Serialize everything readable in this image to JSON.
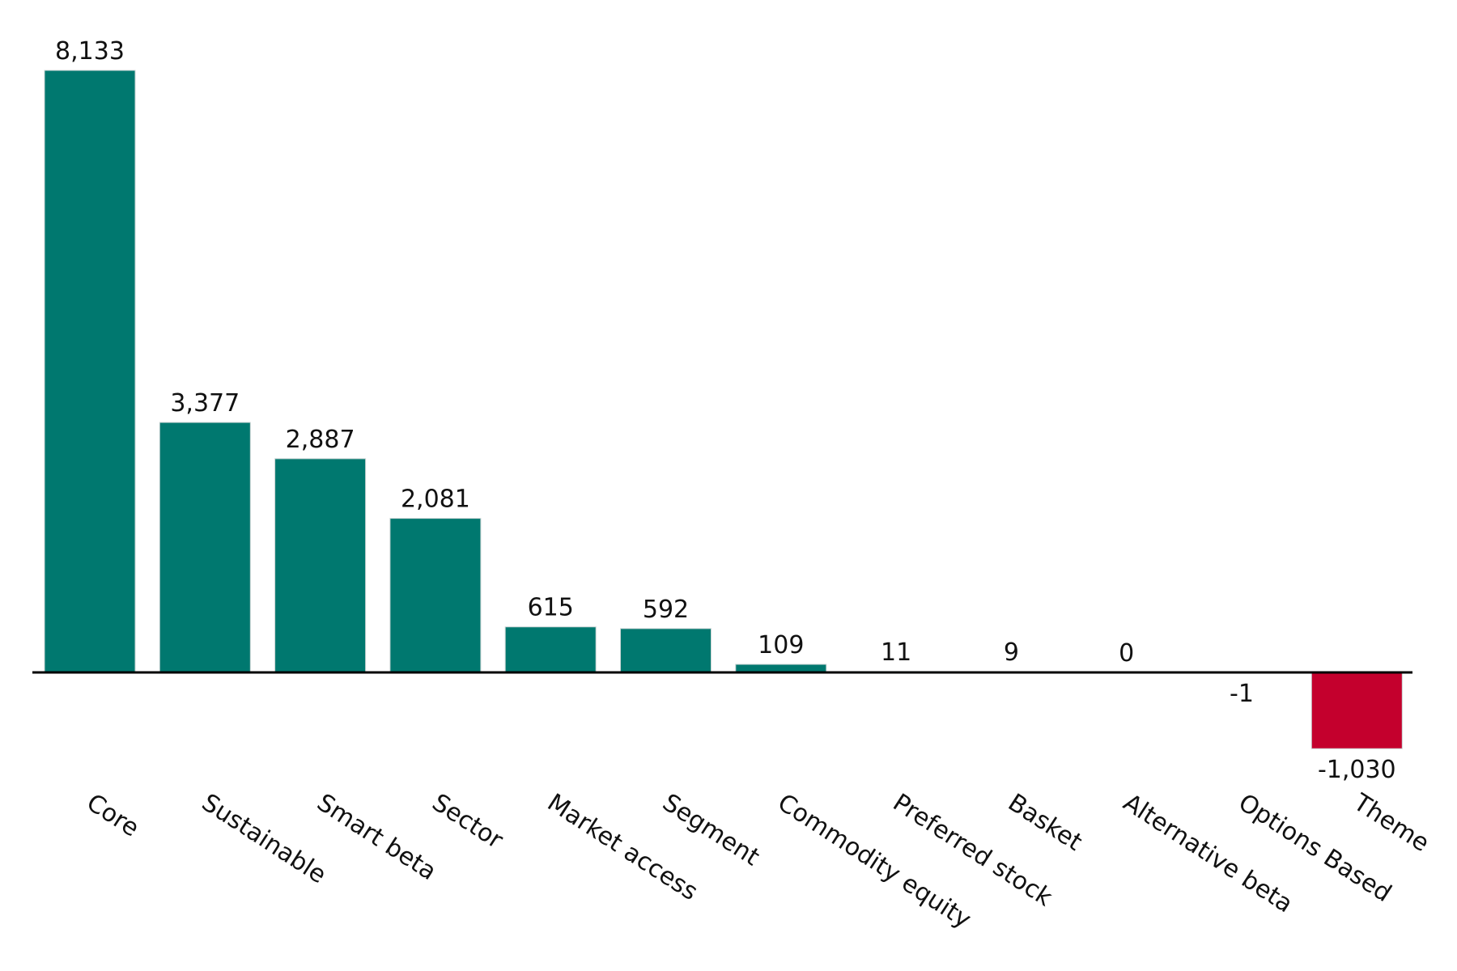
{
  "chart_data": {
    "type": "bar",
    "categories": [
      "Core",
      "Sustainable",
      "Smart beta",
      "Sector",
      "Market access",
      "Segment",
      "Commodity equity",
      "Preferred stock",
      "Basket",
      "Alternative beta",
      "Options Based",
      "Theme"
    ],
    "values": [
      8133,
      3377,
      2887,
      2081,
      615,
      592,
      109,
      11,
      9,
      0,
      -1,
      -1030
    ],
    "value_labels": [
      "8,133",
      "3,377",
      "2,887",
      "2,081",
      "615",
      "592",
      "109",
      "11",
      "9",
      "0",
      "-1",
      "-1,030"
    ],
    "color": "#00786f",
    "negative_color": "#c4002d"
  }
}
